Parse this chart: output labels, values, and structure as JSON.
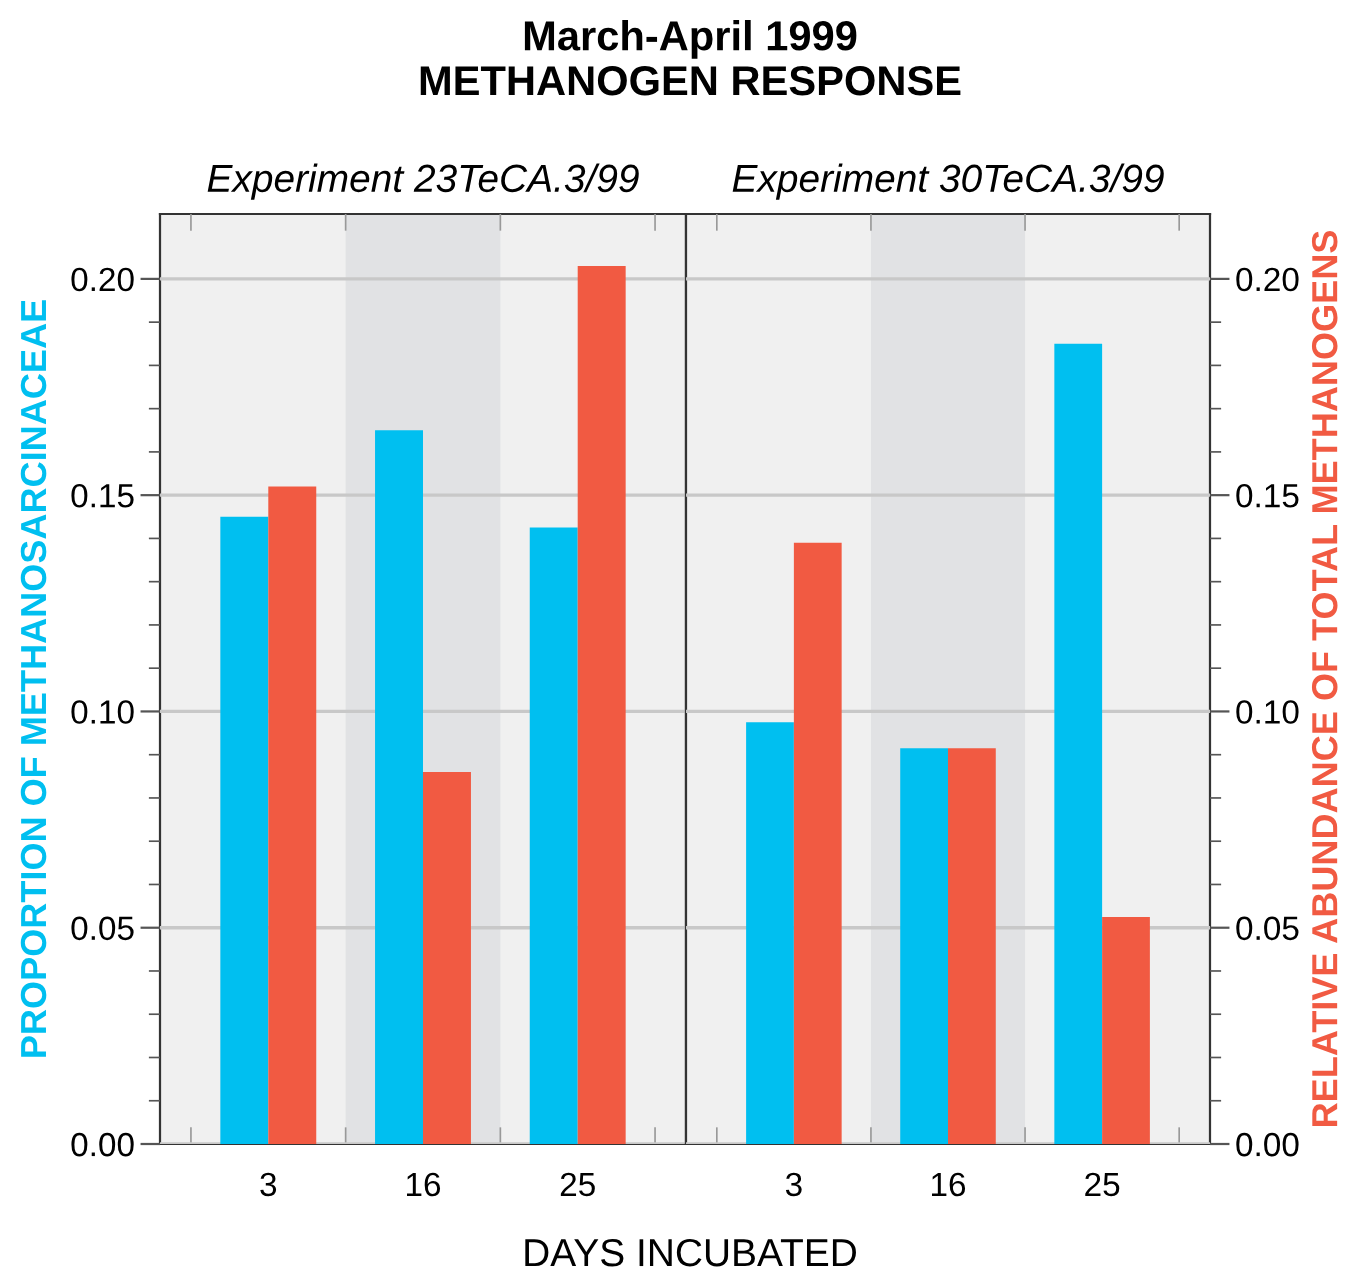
{
  "chart_data": [
    {
      "type": "bar",
      "title": "March-April 1999\nMETHANOGEN RESPONSE",
      "subtitle": "Experiment 23TeCA.3/99",
      "xlabel": "DAYS INCUBATED",
      "ylabel": "PROPORTION OF METHANOSARCINACEAE",
      "categories": [
        "3",
        "16",
        "25"
      ],
      "series": [
        {
          "color": "#00bff0",
          "values": [
            0.145,
            0.165,
            0.1425
          ]
        },
        {
          "color": "#f15a42",
          "values": [
            0.152,
            0.086,
            0.203
          ]
        }
      ],
      "ylim": [
        0,
        0.215
      ],
      "yticks": [
        "0.00",
        {
          "value": 0.01,
          "label": null
        },
        {
          "value": 0.02,
          "label": null
        },
        {
          "value": 0.03,
          "label": null
        },
        {
          "value": 0.04,
          "label": null
        },
        {
          "value": 0.05,
          "label": "0.05"
        },
        {
          "value": 0.06,
          "label": null
        },
        {
          "value": 0.07,
          "label": null
        },
        {
          "value": 0.08,
          "label": null
        },
        {
          "value": 0.09,
          "label": null
        },
        {
          "value": 0.1,
          "label": "0.10"
        },
        {
          "value": 0.11,
          "label": null
        },
        {
          "value": 0.12,
          "label": null
        },
        {
          "value": 0.13,
          "label": null
        },
        {
          "value": 0.14,
          "label": null
        },
        {
          "value": 0.15,
          "label": "0.15"
        },
        {
          "value": 0.16,
          "label": null
        },
        {
          "value": 0.17,
          "label": null
        },
        {
          "value": 0.18,
          "label": null
        },
        {
          "value": 0.19,
          "label": null
        },
        {
          "value": 0.2,
          "label": "0.20"
        }
      ],
      "bands": [
        {
          "axis": "x",
          "from": "16",
          "to": "16",
          "color": "#e1e2e4"
        }
      ],
      "grid": "y"
    },
    {
      "type": "bar",
      "subtitle": "Experiment 30TeCA.3/99",
      "y2label": "RELATIVE ABUNDANCE OF TOTAL METHANOGENS",
      "categories": [
        "3",
        "16",
        "25"
      ],
      "series": [
        {
          "color": "#00bff0",
          "axis": "y2",
          "values": [
            0.0975,
            0.0915,
            0.185
          ]
        },
        {
          "color": "#f15a42",
          "axis": "y2",
          "values": [
            0.139,
            0.0915,
            0.0525
          ]
        }
      ],
      "y2lim": [
        0,
        0.215
      ],
      "y2ticks": [
        "0.00",
        {
          "value": 0.01,
          "label": null
        },
        {
          "value": 0.02,
          "label": null
        },
        {
          "value": 0.03,
          "label": null
        },
        {
          "value": 0.04,
          "label": null
        },
        {
          "value": 0.05,
          "label": "0.05"
        },
        {
          "value": 0.06,
          "label": null
        },
        {
          "value": 0.07,
          "label": null
        },
        {
          "value": 0.08,
          "label": null
        },
        {
          "value": 0.09,
          "label": null
        },
        {
          "value": 0.1,
          "label": "0.10"
        },
        {
          "value": 0.11,
          "label": null
        },
        {
          "value": 0.12,
          "label": null
        },
        {
          "value": 0.13,
          "label": null
        },
        {
          "value": 0.14,
          "label": null
        },
        {
          "value": 0.15,
          "label": "0.15"
        },
        {
          "value": 0.16,
          "label": null
        },
        {
          "value": 0.17,
          "label": null
        },
        {
          "value": 0.18,
          "label": null
        },
        {
          "value": 0.19,
          "label": null
        },
        {
          "value": 0.2,
          "label": "0.20"
        }
      ],
      "bands": [
        {
          "axis": "x",
          "from": "16",
          "to": "16",
          "color": "#e1e2e4"
        }
      ],
      "grid": "y"
    }
  ]
}
